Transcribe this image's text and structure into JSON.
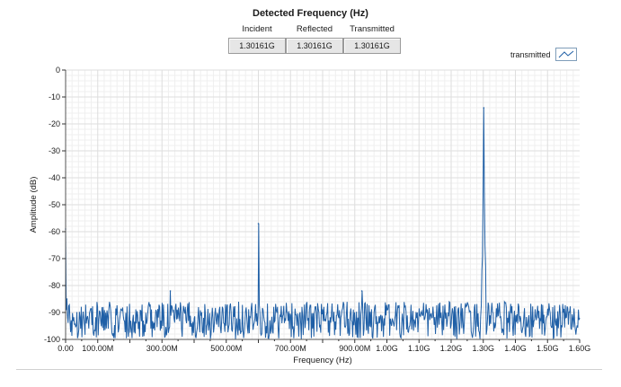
{
  "header": {
    "title": "Detected Frequency (Hz)",
    "fields": [
      {
        "label": "Incident",
        "value": "1.30161G"
      },
      {
        "label": "Reflected",
        "value": "1.30161G"
      },
      {
        "label": "Transmitted",
        "value": "1.30161G"
      }
    ]
  },
  "legend": {
    "label": "transmitted",
    "icon": "line-plot-icon"
  },
  "colors": {
    "trace": "#1f5fa6",
    "grid": "#dedede",
    "plot_bg": "#ffffff"
  },
  "chart_data": {
    "type": "line",
    "xlabel": "Frequency (Hz)",
    "ylabel": "Amplitude (dB)",
    "xlim": [
      0,
      1600000000
    ],
    "ylim": [
      -100,
      0
    ],
    "grid": true,
    "legend_position": "top-right",
    "x_ticks": [
      {
        "value": 0,
        "label": "0.00"
      },
      {
        "value": 100000000,
        "label": "100.00M"
      },
      {
        "value": 300000000,
        "label": "300.00M"
      },
      {
        "value": 500000000,
        "label": "500.00M"
      },
      {
        "value": 700000000,
        "label": "700.00M"
      },
      {
        "value": 900000000,
        "label": "900.00M"
      },
      {
        "value": 1000000000,
        "label": "1.00G"
      },
      {
        "value": 1100000000,
        "label": "1.10G"
      },
      {
        "value": 1200000000,
        "label": "1.20G"
      },
      {
        "value": 1300000000,
        "label": "1.30G"
      },
      {
        "value": 1400000000,
        "label": "1.40G"
      },
      {
        "value": 1500000000,
        "label": "1.50G"
      },
      {
        "value": 1600000000,
        "label": "1.60G"
      }
    ],
    "y_ticks": [
      {
        "value": 0,
        "label": "0"
      },
      {
        "value": -10,
        "label": "-10"
      },
      {
        "value": -20,
        "label": "-20"
      },
      {
        "value": -30,
        "label": "-30"
      },
      {
        "value": -40,
        "label": "-40"
      },
      {
        "value": -50,
        "label": "-50"
      },
      {
        "value": -60,
        "label": "-60"
      },
      {
        "value": -70,
        "label": "-70"
      },
      {
        "value": -80,
        "label": "-80"
      },
      {
        "value": -90,
        "label": "-90"
      },
      {
        "value": -100,
        "label": "-100"
      }
    ],
    "series": [
      {
        "name": "transmitted",
        "noise_floor": [
          -100,
          -86
        ],
        "peaks": [
          {
            "x": 0,
            "y": -59
          },
          {
            "x": 4000000,
            "y": -85
          },
          {
            "x": 326000000,
            "y": -82
          },
          {
            "x": 600000000,
            "y": -57
          },
          {
            "x": 922000000,
            "y": -82
          },
          {
            "x": 1301610000,
            "y": -14
          }
        ]
      }
    ]
  }
}
